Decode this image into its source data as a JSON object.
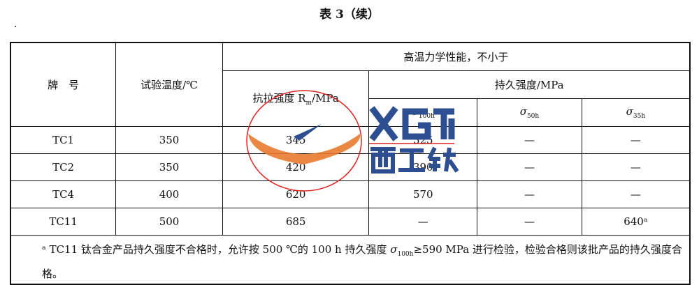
{
  "title": "表 3（续）",
  "headers": {
    "grade": "牌　号",
    "temp": "试验温度/℃",
    "group": "高温力学性能，不小于",
    "tensile": "抗拉强度 R",
    "tensile_sub": "m",
    "tensile_unit": "/MPa",
    "rupture": "持久强度/MPa",
    "s100": "100h",
    "s50": "50h",
    "s35": "35h",
    "sigma": "σ"
  },
  "rows": [
    {
      "grade": "TC1",
      "temp": "350",
      "rm": "345",
      "s100": "325",
      "s50": "—",
      "s35": "—"
    },
    {
      "grade": "TC2",
      "temp": "350",
      "rm": "420",
      "s100": "390",
      "s50": "—",
      "s35": "—"
    },
    {
      "grade": "TC4",
      "temp": "400",
      "rm": "620",
      "s100": "570",
      "s50": "—",
      "s35": "—"
    },
    {
      "grade": "TC11",
      "temp": "500",
      "rm": "685",
      "s100": "—",
      "s50": "—",
      "s35": "640ᵃ"
    }
  ],
  "footnote": {
    "mark": "ᵃ",
    "text1": "TC11 钛合金产品持久强度不合格时，允许按 500 ℃的 100 h 持久强度 ",
    "sub": "100h",
    "text2": "≥590 MPa 进行检验，检验合格则该批产品的持久强度合格。"
  },
  "watermark": {
    "text": "XGTI",
    "cn": "西工钛",
    "colors": {
      "blue": "#2d4f91",
      "orange": "#e87a2d",
      "red": "#e02020"
    }
  }
}
